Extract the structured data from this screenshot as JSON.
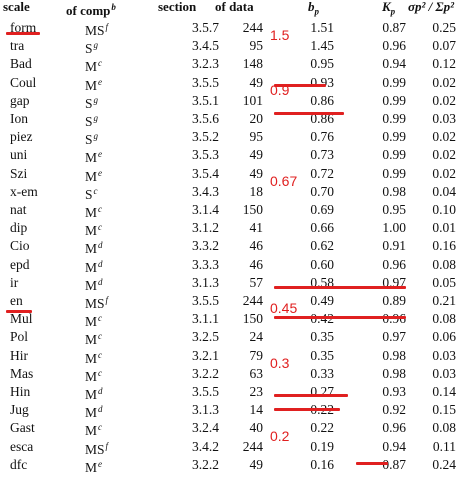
{
  "headers": {
    "scale": "scale",
    "comp": "of comp",
    "comp_sup": "b",
    "section": "section",
    "ndata": "of data",
    "bp": "b",
    "bp_sub": "p",
    "kp": "K",
    "kp_sub": "p",
    "ratio": "σp² / Σp²"
  },
  "rows": [
    {
      "scale": "form",
      "comp": "MS",
      "sup": "f",
      "section": "3.5.7",
      "n": "244",
      "bp": "1.51",
      "kp": "0.87",
      "ratio": "0.25"
    },
    {
      "scale": "tra",
      "comp": "S",
      "sup": "g",
      "section": "3.4.5",
      "n": "95",
      "bp": "1.45",
      "kp": "0.96",
      "ratio": "0.07"
    },
    {
      "scale": "Bad",
      "comp": "M",
      "sup": "c",
      "section": "3.2.3",
      "n": "148",
      "bp": "0.95",
      "kp": "0.94",
      "ratio": "0.12"
    },
    {
      "scale": "Coul",
      "comp": "M",
      "sup": "e",
      "section": "3.5.5",
      "n": "49",
      "bp": "0.93",
      "kp": "0.99",
      "ratio": "0.02"
    },
    {
      "scale": "gap",
      "comp": "S",
      "sup": "g",
      "section": "3.5.1",
      "n": "101",
      "bp": "0.86",
      "kp": "0.99",
      "ratio": "0.02"
    },
    {
      "scale": "Ion",
      "comp": "S",
      "sup": "g",
      "section": "3.5.6",
      "n": "20",
      "bp": "0.86",
      "kp": "0.99",
      "ratio": "0.03"
    },
    {
      "scale": "piez",
      "comp": "S",
      "sup": "g",
      "section": "3.5.2",
      "n": "95",
      "bp": "0.76",
      "kp": "0.99",
      "ratio": "0.02"
    },
    {
      "scale": "uni",
      "comp": "M",
      "sup": "e",
      "section": "3.5.3",
      "n": "49",
      "bp": "0.73",
      "kp": "0.99",
      "ratio": "0.02"
    },
    {
      "scale": "Szi",
      "comp": "M",
      "sup": "e",
      "section": "3.5.4",
      "n": "49",
      "bp": "0.72",
      "kp": "0.99",
      "ratio": "0.02"
    },
    {
      "scale": "x-em",
      "comp": "S",
      "sup": "c",
      "section": "3.4.3",
      "n": "18",
      "bp": "0.70",
      "kp": "0.98",
      "ratio": "0.04"
    },
    {
      "scale": "nat",
      "comp": "M",
      "sup": "c",
      "section": "3.1.4",
      "n": "150",
      "bp": "0.69",
      "kp": "0.95",
      "ratio": "0.10"
    },
    {
      "scale": "dip",
      "comp": "M",
      "sup": "c",
      "section": "3.1.2",
      "n": "41",
      "bp": "0.66",
      "kp": "1.00",
      "ratio": "0.01"
    },
    {
      "scale": "Cio",
      "comp": "M",
      "sup": "d",
      "section": "3.3.2",
      "n": "46",
      "bp": "0.62",
      "kp": "0.91",
      "ratio": "0.16"
    },
    {
      "scale": "epd",
      "comp": "M",
      "sup": "d",
      "section": "3.3.3",
      "n": "46",
      "bp": "0.60",
      "kp": "0.96",
      "ratio": "0.08"
    },
    {
      "scale": "ir",
      "comp": "M",
      "sup": "d",
      "section": "3.1.3",
      "n": "57",
      "bp": "0.58",
      "kp": "0.97",
      "ratio": "0.05"
    },
    {
      "scale": "en",
      "comp": "MS",
      "sup": "f",
      "section": "3.5.5",
      "n": "244",
      "bp": "0.49",
      "kp": "0.89",
      "ratio": "0.21"
    },
    {
      "scale": "Mul",
      "comp": "M",
      "sup": "c",
      "section": "3.1.1",
      "n": "150",
      "bp": "0.42",
      "kp": "0.96",
      "ratio": "0.08"
    },
    {
      "scale": "Pol",
      "comp": "M",
      "sup": "c",
      "section": "3.2.5",
      "n": "24",
      "bp": "0.35",
      "kp": "0.97",
      "ratio": "0.06"
    },
    {
      "scale": "Hir",
      "comp": "M",
      "sup": "c",
      "section": "3.2.1",
      "n": "79",
      "bp": "0.35",
      "kp": "0.98",
      "ratio": "0.03"
    },
    {
      "scale": "Mas",
      "comp": "M",
      "sup": "c",
      "section": "3.2.2",
      "n": "63",
      "bp": "0.33",
      "kp": "0.98",
      "ratio": "0.03"
    },
    {
      "scale": "Hin",
      "comp": "M",
      "sup": "d",
      "section": "3.5.5",
      "n": "23",
      "bp": "0.27",
      "kp": "0.93",
      "ratio": "0.14"
    },
    {
      "scale": "Jug",
      "comp": "M",
      "sup": "d",
      "section": "3.1.3",
      "n": "14",
      "bp": "0.22",
      "kp": "0.92",
      "ratio": "0.15"
    },
    {
      "scale": "Gast",
      "comp": "M",
      "sup": "c",
      "section": "3.2.4",
      "n": "40",
      "bp": "0.22",
      "kp": "0.96",
      "ratio": "0.08"
    },
    {
      "scale": "esca",
      "comp": "MS",
      "sup": "f",
      "section": "3.4.2",
      "n": "244",
      "bp": "0.19",
      "kp": "0.94",
      "ratio": "0.11"
    },
    {
      "scale": "dfc",
      "comp": "M",
      "sup": "e",
      "section": "3.2.2",
      "n": "49",
      "bp": "0.16",
      "kp": "0.87",
      "ratio": "0.24"
    }
  ],
  "annotations": [
    {
      "label": "1.5",
      "row": 1
    },
    {
      "label": "0.9",
      "row": 4
    },
    {
      "label": "0.67",
      "row": 9
    },
    {
      "label": "0.45",
      "row": 16
    },
    {
      "label": "0.3",
      "row": 19
    },
    {
      "label": "0.2",
      "row": 23
    }
  ],
  "colors": {
    "annotation": "#e02020",
    "text": "#111111"
  }
}
